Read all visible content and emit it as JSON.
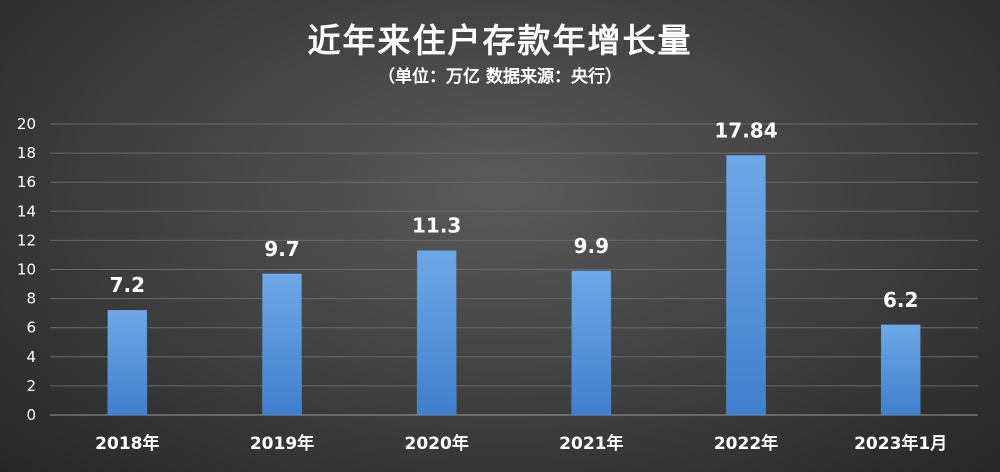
{
  "chart_data": {
    "type": "bar",
    "title": "近年来住户存款年增长量",
    "subtitle": "（单位：万亿  数据来源：央行）",
    "categories": [
      "2018年",
      "2019年",
      "2020年",
      "2021年",
      "2022年",
      "2023年1月"
    ],
    "values": [
      7.2,
      9.7,
      11.3,
      9.9,
      17.84,
      6.2
    ],
    "value_labels": [
      "7.2",
      "9.7",
      "11.3",
      "9.9",
      "17.84",
      "6.2"
    ],
    "ylim": [
      0,
      20
    ],
    "yticks": [
      0,
      2,
      4,
      6,
      8,
      10,
      12,
      14,
      16,
      18,
      20
    ],
    "grid": true,
    "xlabel": "",
    "ylabel": "",
    "colors": {
      "bar_top": "#6ea8e6",
      "bar_bottom": "#3f7fcc",
      "grid": "#6a6a6a",
      "axis": "#9a9a9a"
    }
  }
}
